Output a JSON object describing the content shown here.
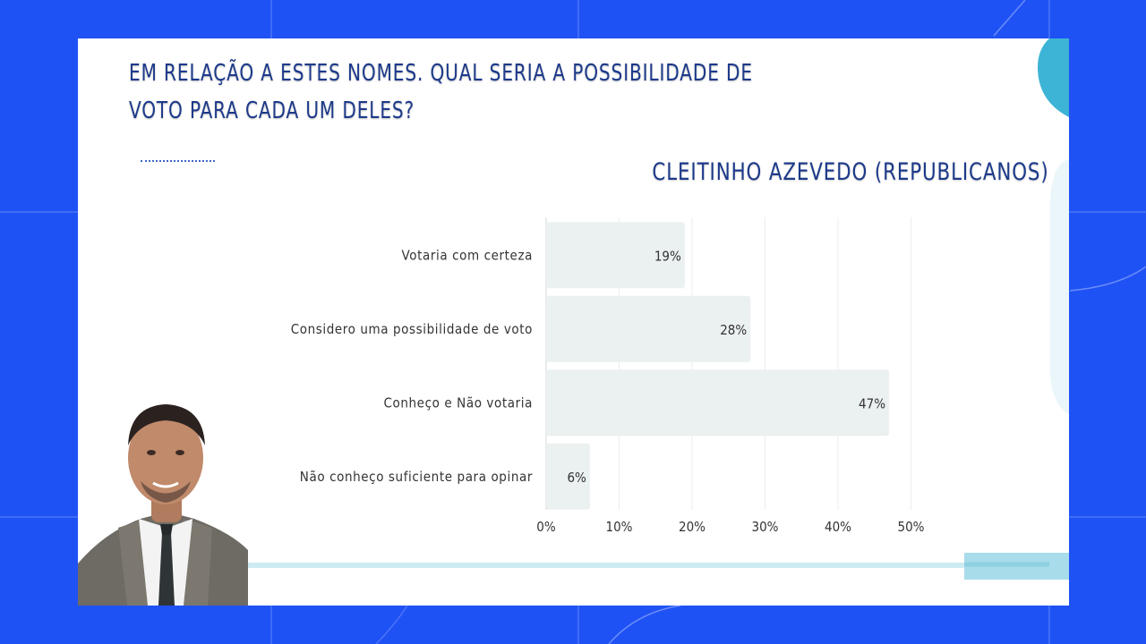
{
  "slide": {
    "title": "EM RELAÇÃO A ESTES NOMES. QUAL SERIA A POSSIBILIDADE DE VOTO PARA CADA UM DELES?",
    "subtitle": "CLEITINHO AZEVEDO (REPUBLICANOS)"
  },
  "colors": {
    "background": "#1f52f5",
    "title_text": "#1d3a8a",
    "bar_fill": "#ebf0f0",
    "accent_light_blue": "#a8dcea",
    "accent_teal": "#3db4d6"
  },
  "chart_data": {
    "type": "bar",
    "orientation": "horizontal",
    "categories": [
      "Votaria com certeza",
      "Considero uma possibilidade de voto",
      "Conheço e Não votaria",
      "Não conheço suficiente para opinar"
    ],
    "values": [
      19,
      28,
      47,
      6
    ],
    "value_labels": [
      "19%",
      "28%",
      "47%",
      "6%"
    ],
    "xlim": [
      0,
      50
    ],
    "x_ticks": [
      0,
      10,
      20,
      30,
      40,
      50
    ],
    "x_tick_labels": [
      "0%",
      "10%",
      "20%",
      "30%",
      "40%",
      "50%"
    ],
    "grid": true,
    "legend": "none"
  },
  "photo": {
    "icon": "person-portrait-icon"
  }
}
